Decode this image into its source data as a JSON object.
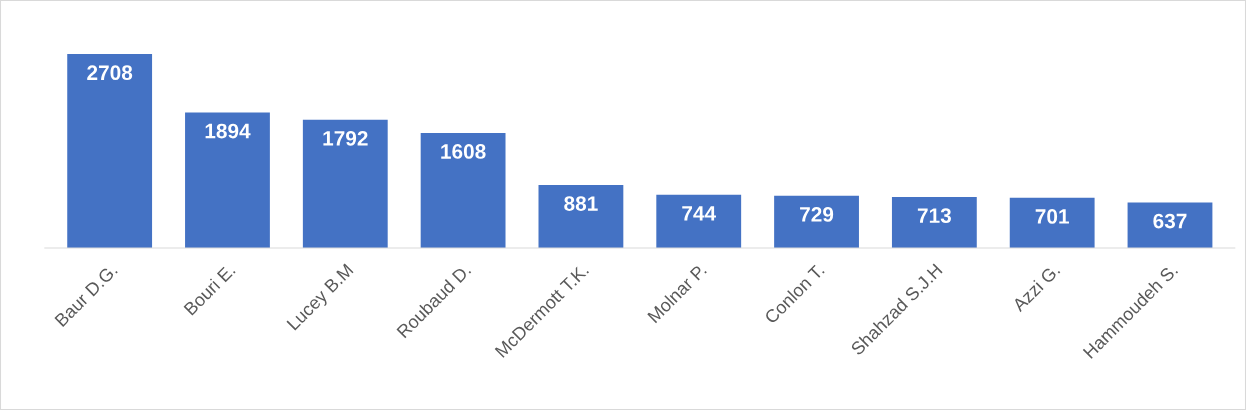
{
  "chart_data": {
    "type": "bar",
    "categories": [
      "Baur D.G.",
      "Bouri E.",
      "Lucey B.M",
      "Roubaud D.",
      "McDermott T.K.",
      "Molnar P.",
      "Conlon T.",
      "Shahzad S.J.H",
      "Azzi G.",
      "Hammoudeh S."
    ],
    "values": [
      2708,
      1894,
      1792,
      1608,
      881,
      744,
      729,
      713,
      701,
      637
    ],
    "color": "#4472c4",
    "data_labels": true,
    "grid": false,
    "legend": false
  }
}
